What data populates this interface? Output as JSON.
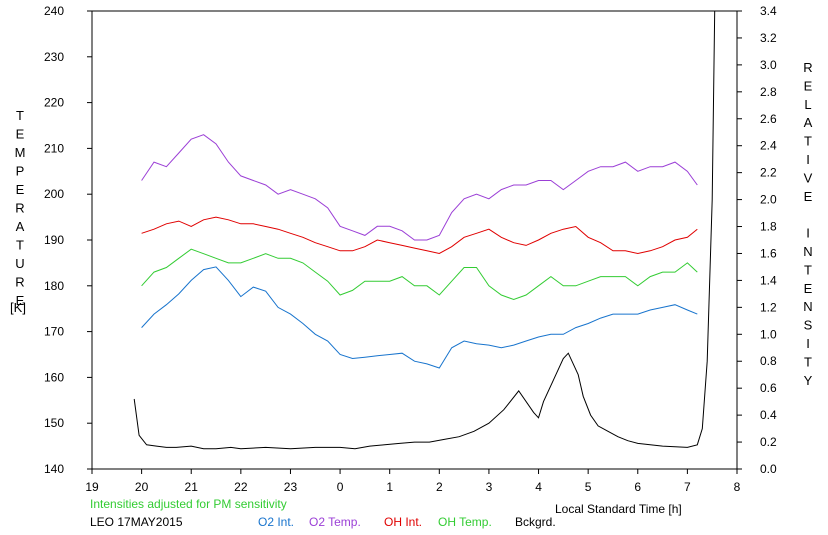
{
  "chart_data": {
    "type": "line",
    "left_axis_title": "TEMPERATURE",
    "left_axis_unit": "[K]",
    "right_axis_title": "RELATIVE INTENSITY",
    "xlabel": "Local Standard Time [h]",
    "note": "Intensities adjusted for PM sensitivity",
    "station_date": "LEO 17MAY2015",
    "x_ticks": [
      "19",
      "20",
      "21",
      "22",
      "23",
      "0",
      "1",
      "2",
      "3",
      "4",
      "5",
      "6",
      "7",
      "8"
    ],
    "y_left_ticks": [
      140,
      150,
      160,
      170,
      180,
      190,
      200,
      210,
      220,
      230,
      240
    ],
    "y_right_ticks": [
      "0.0",
      "0.2",
      "0.4",
      "0.6",
      "0.8",
      "1.0",
      "1.2",
      "1.4",
      "1.6",
      "1.8",
      "2.0",
      "2.2",
      "2.4",
      "2.6",
      "2.8",
      "3.0",
      "3.2",
      "3.4"
    ],
    "xlim": [
      19,
      32
    ],
    "ylim_left": [
      140,
      240
    ],
    "ylim_right": [
      0.0,
      3.4
    ],
    "grid": false,
    "colors": {
      "o2_int": "#1874cd",
      "o2_temp": "#9b3fd6",
      "oh_int": "#e00000",
      "oh_temp": "#33cc33",
      "bckgrd": "#000000",
      "note": "#33cc33"
    },
    "series": [
      {
        "name": "O2 Int.",
        "axis": "right",
        "x": [
          20.0,
          20.25,
          20.5,
          20.75,
          21.0,
          21.25,
          21.5,
          21.75,
          22.0,
          22.25,
          22.5,
          22.75,
          23.0,
          23.25,
          23.5,
          23.75,
          24.0,
          24.25,
          24.5,
          24.75,
          25.0,
          25.25,
          25.5,
          25.75,
          26.0,
          26.25,
          26.5,
          26.75,
          27.0,
          27.25,
          27.5,
          27.75,
          28.0,
          28.25,
          28.5,
          28.75,
          29.0,
          29.25,
          29.5,
          29.75,
          30.0,
          30.25,
          30.5,
          30.75,
          31.0,
          31.2
        ],
        "values": [
          1.05,
          1.15,
          1.22,
          1.3,
          1.4,
          1.48,
          1.5,
          1.4,
          1.28,
          1.35,
          1.32,
          1.2,
          1.15,
          1.08,
          1.0,
          0.95,
          0.85,
          0.82,
          0.83,
          0.84,
          0.85,
          0.86,
          0.8,
          0.78,
          0.75,
          0.9,
          0.95,
          0.93,
          0.92,
          0.9,
          0.92,
          0.95,
          0.98,
          1.0,
          1.0,
          1.05,
          1.08,
          1.12,
          1.15,
          1.15,
          1.15,
          1.18,
          1.2,
          1.22,
          1.18,
          1.15
        ]
      },
      {
        "name": "O2 Temp.",
        "axis": "left",
        "x": [
          20.0,
          20.25,
          20.5,
          20.75,
          21.0,
          21.25,
          21.5,
          21.75,
          22.0,
          22.25,
          22.5,
          22.75,
          23.0,
          23.25,
          23.5,
          23.75,
          24.0,
          24.25,
          24.5,
          24.75,
          25.0,
          25.25,
          25.5,
          25.75,
          26.0,
          26.25,
          26.5,
          26.75,
          27.0,
          27.25,
          27.5,
          27.75,
          28.0,
          28.25,
          28.5,
          28.75,
          29.0,
          29.25,
          29.5,
          29.75,
          30.0,
          30.25,
          30.5,
          30.75,
          31.0,
          31.2
        ],
        "values": [
          203,
          207,
          206,
          209,
          212,
          213,
          211,
          207,
          204,
          203,
          202,
          200,
          201,
          200,
          199,
          197,
          193,
          192,
          191,
          193,
          193,
          192,
          190,
          190,
          191,
          196,
          199,
          200,
          199,
          201,
          202,
          202,
          203,
          203,
          201,
          203,
          205,
          206,
          206,
          207,
          205,
          206,
          206,
          207,
          205,
          202
        ]
      },
      {
        "name": "OH Int.",
        "axis": "right",
        "x": [
          20.0,
          20.25,
          20.5,
          20.75,
          21.0,
          21.25,
          21.5,
          21.75,
          22.0,
          22.25,
          22.5,
          22.75,
          23.0,
          23.25,
          23.5,
          23.75,
          24.0,
          24.25,
          24.5,
          24.75,
          25.0,
          25.25,
          25.5,
          25.75,
          26.0,
          26.25,
          26.5,
          26.75,
          27.0,
          27.25,
          27.5,
          27.75,
          28.0,
          28.25,
          28.5,
          28.75,
          29.0,
          29.25,
          29.5,
          29.75,
          30.0,
          30.25,
          30.5,
          30.75,
          31.0,
          31.2
        ],
        "values": [
          1.75,
          1.78,
          1.82,
          1.84,
          1.8,
          1.85,
          1.87,
          1.85,
          1.82,
          1.82,
          1.8,
          1.78,
          1.75,
          1.72,
          1.68,
          1.65,
          1.62,
          1.62,
          1.65,
          1.7,
          1.68,
          1.66,
          1.64,
          1.62,
          1.6,
          1.65,
          1.72,
          1.75,
          1.78,
          1.72,
          1.68,
          1.66,
          1.7,
          1.75,
          1.78,
          1.8,
          1.72,
          1.68,
          1.62,
          1.62,
          1.6,
          1.62,
          1.65,
          1.7,
          1.72,
          1.78
        ]
      },
      {
        "name": "OH Temp.",
        "axis": "left",
        "x": [
          20.0,
          20.25,
          20.5,
          20.75,
          21.0,
          21.25,
          21.5,
          21.75,
          22.0,
          22.25,
          22.5,
          22.75,
          23.0,
          23.25,
          23.5,
          23.75,
          24.0,
          24.25,
          24.5,
          24.75,
          25.0,
          25.25,
          25.5,
          25.75,
          26.0,
          26.25,
          26.5,
          26.75,
          27.0,
          27.25,
          27.5,
          27.75,
          28.0,
          28.25,
          28.5,
          28.75,
          29.0,
          29.25,
          29.5,
          29.75,
          30.0,
          30.25,
          30.5,
          30.75,
          31.0,
          31.2
        ],
        "values": [
          180,
          183,
          184,
          186,
          188,
          187,
          186,
          185,
          185,
          186,
          187,
          186,
          186,
          185,
          183,
          181,
          178,
          179,
          181,
          181,
          181,
          182,
          180,
          180,
          178,
          181,
          184,
          184,
          180,
          178,
          177,
          178,
          180,
          182,
          180,
          180,
          181,
          182,
          182,
          182,
          180,
          182,
          183,
          183,
          185,
          183
        ]
      },
      {
        "name": "Bckgrd.",
        "axis": "right",
        "x": [
          19.85,
          19.95,
          20.1,
          20.3,
          20.5,
          20.7,
          21.0,
          21.25,
          21.5,
          21.8,
          22.0,
          22.5,
          23.0,
          23.5,
          24.0,
          24.3,
          24.6,
          24.9,
          25.2,
          25.5,
          25.8,
          26.1,
          26.4,
          26.7,
          27.0,
          27.3,
          27.6,
          27.9,
          28.0,
          28.1,
          28.3,
          28.5,
          28.6,
          28.8,
          28.9,
          29.05,
          29.2,
          29.4,
          29.6,
          29.8,
          30.0,
          30.5,
          31.0,
          31.2,
          31.3,
          31.4,
          31.5,
          31.55
        ],
        "values": [
          0.52,
          0.25,
          0.18,
          0.17,
          0.16,
          0.16,
          0.17,
          0.15,
          0.15,
          0.16,
          0.15,
          0.16,
          0.15,
          0.16,
          0.16,
          0.15,
          0.17,
          0.18,
          0.19,
          0.2,
          0.2,
          0.22,
          0.24,
          0.28,
          0.34,
          0.44,
          0.58,
          0.42,
          0.38,
          0.5,
          0.66,
          0.82,
          0.86,
          0.7,
          0.54,
          0.4,
          0.32,
          0.28,
          0.24,
          0.21,
          0.19,
          0.17,
          0.16,
          0.18,
          0.3,
          0.8,
          2.0,
          3.4
        ]
      }
    ]
  }
}
